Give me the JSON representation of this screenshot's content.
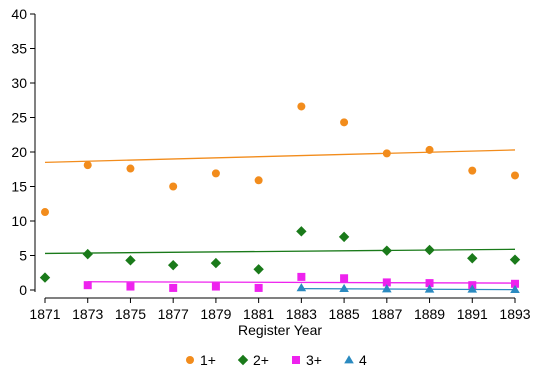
{
  "chart_data": {
    "type": "scatter",
    "title": "",
    "xlabel": "Register Year",
    "ylabel": "",
    "xlim": [
      1871,
      1893
    ],
    "ylim": [
      0,
      40
    ],
    "xticks": [
      "1871",
      "1873",
      "1875",
      "1877",
      "1879",
      "1881",
      "1883",
      "1885",
      "1887",
      "1889",
      "1891",
      "1893"
    ],
    "yticks": [
      "0",
      "5",
      "10",
      "15",
      "20",
      "25",
      "30",
      "35",
      "40"
    ],
    "grid": false,
    "legend_position": "bottom",
    "series": [
      {
        "name": "1+",
        "marker": "circle",
        "color": "#f28c1c",
        "x": [
          1871,
          1873,
          1875,
          1877,
          1879,
          1881,
          1883,
          1885,
          1887,
          1889,
          1891,
          1893
        ],
        "y": [
          11.3,
          18.1,
          17.6,
          15.0,
          16.9,
          15.9,
          26.6,
          24.3,
          19.8,
          20.3,
          17.3,
          16.6
        ],
        "trend": [
          [
            1871,
            18.5
          ],
          [
            1893,
            20.3
          ]
        ]
      },
      {
        "name": "2+",
        "marker": "diamond",
        "color": "#1a7a1a",
        "x": [
          1871,
          1873,
          1875,
          1877,
          1879,
          1881,
          1883,
          1885,
          1887,
          1889,
          1891,
          1893
        ],
        "y": [
          1.8,
          5.2,
          4.3,
          3.6,
          3.9,
          3.0,
          8.5,
          7.7,
          5.7,
          5.8,
          4.6,
          4.4
        ],
        "trend": [
          [
            1871,
            5.3
          ],
          [
            1893,
            5.9
          ]
        ]
      },
      {
        "name": "3+",
        "marker": "square",
        "color": "#ee22ee",
        "x": [
          1873,
          1875,
          1877,
          1879,
          1881,
          1883,
          1885,
          1887,
          1889,
          1891,
          1893
        ],
        "y": [
          0.7,
          0.5,
          0.3,
          0.5,
          0.3,
          1.9,
          1.7,
          1.1,
          1.0,
          0.7,
          0.9
        ],
        "trend": [
          [
            1873,
            1.2
          ],
          [
            1893,
            1.0
          ]
        ]
      },
      {
        "name": "4",
        "marker": "triangle",
        "color": "#2a8ac0",
        "x": [
          1883,
          1885,
          1887,
          1889,
          1891,
          1893
        ],
        "y": [
          0.3,
          0.2,
          0.15,
          0.1,
          0.1,
          0.05
        ],
        "trend": [
          [
            1883,
            0.2
          ],
          [
            1893,
            0.05
          ]
        ]
      }
    ]
  }
}
